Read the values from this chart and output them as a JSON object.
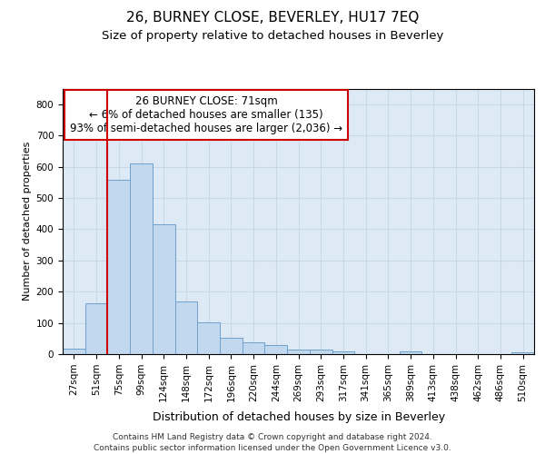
{
  "title": "26, BURNEY CLOSE, BEVERLEY, HU17 7EQ",
  "subtitle": "Size of property relative to detached houses in Beverley",
  "xlabel": "Distribution of detached houses by size in Beverley",
  "ylabel": "Number of detached properties",
  "categories": [
    "27sqm",
    "51sqm",
    "75sqm",
    "99sqm",
    "124sqm",
    "148sqm",
    "172sqm",
    "196sqm",
    "220sqm",
    "244sqm",
    "269sqm",
    "293sqm",
    "317sqm",
    "341sqm",
    "365sqm",
    "389sqm",
    "413sqm",
    "438sqm",
    "462sqm",
    "486sqm",
    "510sqm"
  ],
  "values": [
    18,
    163,
    557,
    611,
    416,
    170,
    103,
    52,
    39,
    30,
    15,
    14,
    10,
    0,
    0,
    8,
    0,
    0,
    0,
    0,
    7
  ],
  "bar_color": "#c2d8ef",
  "bar_edge_color": "#6fa0cc",
  "vline_x_idx": 2,
  "vline_color": "#cc0000",
  "annotation_line1": "26 BURNEY CLOSE: 71sqm",
  "annotation_line2": "← 6% of detached houses are smaller (135)",
  "annotation_line3": "93% of semi-detached houses are larger (2,036) →",
  "annotation_box_facecolor": "#ffffff",
  "annotation_box_edgecolor": "#cc0000",
  "grid_color": "#c8d8e8",
  "bg_color": "#ddeaf5",
  "footer_line1": "Contains HM Land Registry data © Crown copyright and database right 2024.",
  "footer_line2": "Contains public sector information licensed under the Open Government Licence v3.0.",
  "ylim": [
    0,
    850
  ],
  "yticks": [
    0,
    100,
    200,
    300,
    400,
    500,
    600,
    700,
    800
  ],
  "title_fontsize": 11,
  "subtitle_fontsize": 9.5,
  "xlabel_fontsize": 9,
  "ylabel_fontsize": 8,
  "tick_fontsize": 7.5,
  "annot_fontsize": 8.5,
  "footer_fontsize": 6.5
}
